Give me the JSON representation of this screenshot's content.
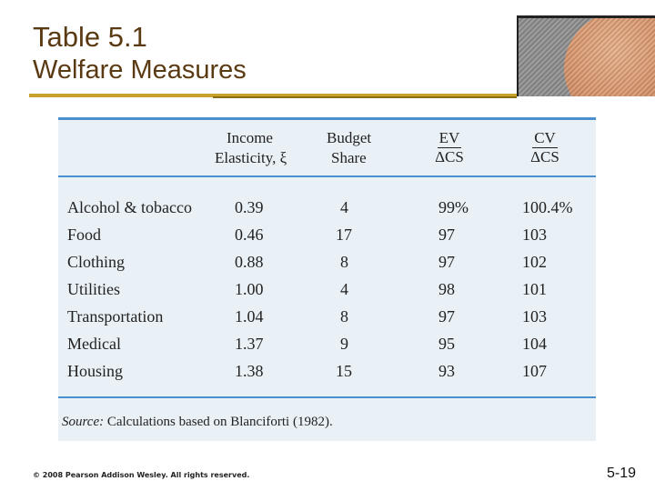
{
  "slide": {
    "title": "Table 5.1",
    "subtitle": "Welfare Measures",
    "footer": "© 2008 Pearson Addison Wesley. All rights reserved.",
    "page_number": "5-19"
  },
  "table": {
    "headers": {
      "col1_line1": "Income",
      "col1_line2": "Elasticity, ξ",
      "col2_line1": "Budget",
      "col2_line2": "Share",
      "col3_num": "EV",
      "col3_den": "ΔCS",
      "col4_num": "CV",
      "col4_den": "ΔCS"
    },
    "rows": [
      {
        "item": "Alcohol & tobacco",
        "elasticity": "0.39",
        "share": "4",
        "ev": "99%",
        "cv": "100.4%"
      },
      {
        "item": "Food",
        "elasticity": "0.46",
        "share": "17",
        "ev": "97",
        "cv": "103"
      },
      {
        "item": "Clothing",
        "elasticity": "0.88",
        "share": "8",
        "ev": "97",
        "cv": "102"
      },
      {
        "item": "Utilities",
        "elasticity": "1.00",
        "share": "4",
        "ev": "98",
        "cv": "101"
      },
      {
        "item": "Transportation",
        "elasticity": "1.04",
        "share": "8",
        "ev": "97",
        "cv": "103"
      },
      {
        "item": "Medical",
        "elasticity": "1.37",
        "share": "9",
        "ev": "95",
        "cv": "104"
      },
      {
        "item": "Housing",
        "elasticity": "1.38",
        "share": "15",
        "ev": "93",
        "cv": "107"
      }
    ],
    "source_label": "Source:",
    "source_text": "Calculations based on Blanciforti (1982)."
  },
  "colors": {
    "title": "#5a3a12",
    "rule": "#c8a22a",
    "panel_bg": "#e9f1f7",
    "panel_lines": "#4a90d0"
  },
  "images": {
    "photo": "rock-on-raked-sand-photo"
  }
}
